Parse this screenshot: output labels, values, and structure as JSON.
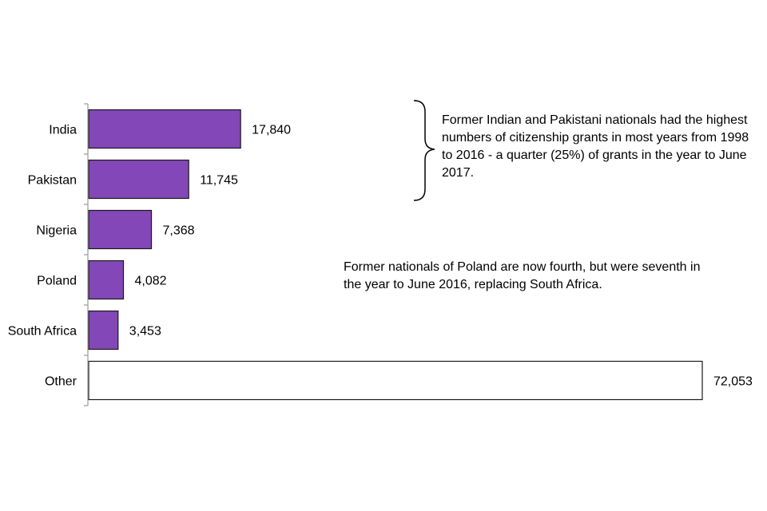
{
  "chart_data": {
    "type": "bar",
    "orientation": "horizontal",
    "categories": [
      "India",
      "Pakistan",
      "Nigeria",
      "Poland",
      "South Africa",
      "Other"
    ],
    "values": [
      17840,
      11745,
      7368,
      4082,
      3453,
      72053
    ],
    "value_labels": [
      "17,840",
      "11,745",
      "7,368",
      "4,082",
      "3,453",
      "72,053"
    ],
    "title": "",
    "xlabel": "",
    "ylabel": "",
    "xlim": [
      0,
      72053
    ],
    "grid": false,
    "legend": "none",
    "colors": {
      "bar": "#8347b7",
      "other_bar": "#ffffff",
      "bar_stroke": "#1a1a1a",
      "axis": "#9a9a9a"
    }
  },
  "annotations": [
    "Former Indian and Pakistani nationals had the highest numbers of citizenship grants in most years from 1998 to 2016 - a quarter (25%) of grants in the year to June 2017.",
    "Former nationals of Poland are now  fourth, but were seventh in the year to June 2016, replacing South Africa."
  ]
}
